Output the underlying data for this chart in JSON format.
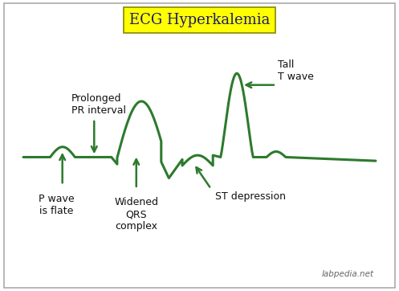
{
  "title": "ECG Hyperkalemia",
  "title_bg": "#ffff00",
  "title_fontsize": 13,
  "title_color": "#1a1a6e",
  "ecg_color": "#2d7a2d",
  "text_color": "#111111",
  "arrow_color": "#2d7a2d",
  "background_color": "#ffffff",
  "border_color": "#aaaaaa",
  "watermark": "labpedia.net",
  "labels": {
    "p_wave": "P wave\nis flate",
    "pr_interval": "Prolonged\nPR interval",
    "qrs": "Widened\nQRS\ncomplex",
    "st": "ST depression",
    "t_wave": "Tall\nT wave"
  }
}
